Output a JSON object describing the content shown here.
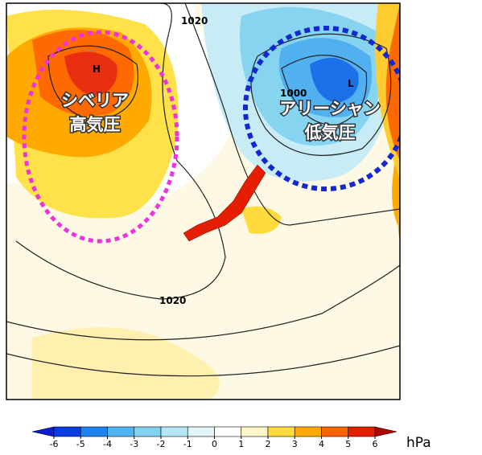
{
  "map": {
    "labels": {
      "siberian_high": [
        "シベリア",
        "高気圧"
      ],
      "aleutian_low": [
        "アリーシャン",
        "低気圧"
      ]
    },
    "centers": [
      "H",
      "L"
    ],
    "isobars": [
      "1020",
      "1000",
      "1020"
    ]
  },
  "colorbar": {
    "ticks": [
      -6,
      -5,
      -4,
      -3,
      -2,
      -1,
      0,
      1,
      2,
      3,
      4,
      5,
      6
    ],
    "colors": [
      "#0a1ed2",
      "#0a3ce6",
      "#1e82f0",
      "#50b4f0",
      "#82d2f0",
      "#b4e6f5",
      "#e1f5fa",
      "#ffffff",
      "#fff5c8",
      "#ffdc3c",
      "#ffaa00",
      "#ff6400",
      "#e61e00",
      "#b40000"
    ],
    "unit": "hPa"
  }
}
